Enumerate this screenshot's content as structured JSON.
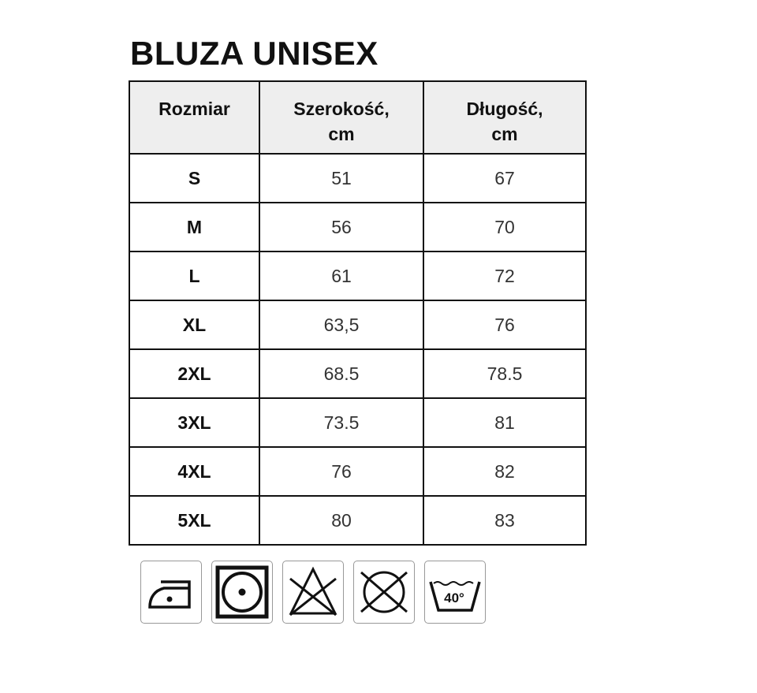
{
  "title": "BLUZA UNISEX",
  "table": {
    "headers": [
      "Rozmiar",
      "Szerokość, cm",
      "Długość, cm"
    ],
    "header_lines": [
      [
        "Rozmiar"
      ],
      [
        "Szerokość,",
        "cm"
      ],
      [
        "Długość,",
        "cm"
      ]
    ],
    "rows": [
      [
        "S",
        "51",
        "67"
      ],
      [
        "M",
        "56",
        "70"
      ],
      [
        "L",
        "61",
        "72"
      ],
      [
        "XL",
        "63,5",
        "76"
      ],
      [
        "2XL",
        "68.5",
        "78.5"
      ],
      [
        "3XL",
        "73.5",
        "81"
      ],
      [
        "4XL",
        "76",
        "82"
      ],
      [
        "5XL",
        "80",
        "83"
      ]
    ]
  },
  "care_icons": [
    {
      "icon": "iron-low-heat-icon"
    },
    {
      "icon": "tumble-dry-icon"
    },
    {
      "icon": "do-not-bleach-icon"
    },
    {
      "icon": "do-not-dry-clean-icon"
    },
    {
      "icon": "wash-40-icon",
      "label": "40°"
    }
  ]
}
